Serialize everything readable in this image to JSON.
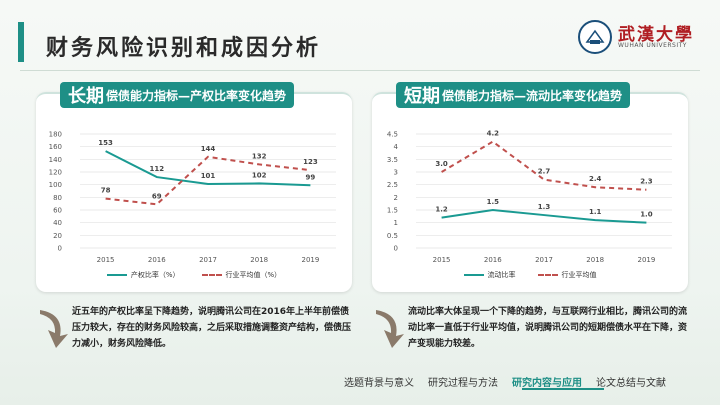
{
  "page": {
    "title": "财务风险识别和成因分析",
    "logo_text": "武漢大學",
    "logo_sub": "WUHAN UNIVERSITY"
  },
  "panels": [
    {
      "header_big": "长期",
      "header_small": "偿债能力指标—产权比率变化趋势",
      "legend": [
        "产权比率（%）",
        "行业平均值（%）"
      ],
      "description": "近五年的产权比率呈下降趋势，说明腾讯公司在2016年上半年前偿债压力较大，存在的财务风险较高，之后采取措施调整资产结构，偿债压力减小，财务风险降低。"
    },
    {
      "header_big": "短期",
      "header_small": "偿债能力指标—流动比率变化趋势",
      "legend": [
        "流动比率",
        "行业平均值"
      ],
      "description": "流动比率大体呈现一个下降的趋势，与互联网行业相比，腾讯公司的流动比率一直低于行业平均值，说明腾讯公司的短期偿债水平在下降，资产变现能力较差。"
    }
  ],
  "nav": {
    "items": [
      "选题背景与意义",
      "研究过程与方法",
      "研究内容与应用",
      "论文总结与文献"
    ],
    "active_index": 2
  },
  "colors": {
    "accent": "#1e8f86",
    "series_solid": "#1a9a92",
    "series_dashed": "#c0504d"
  },
  "chart_data": [
    {
      "type": "line",
      "title": "",
      "x": [
        "2015",
        "2016",
        "2017",
        "2018",
        "2019"
      ],
      "ylim": [
        0,
        180
      ],
      "yticks": [
        "0",
        "20",
        "40",
        "60",
        "80",
        "100",
        "120",
        "140",
        "160",
        "180"
      ],
      "series": [
        {
          "name": "产权比率（%）",
          "values": [
            153,
            112,
            101,
            102,
            99
          ],
          "labels": [
            "153",
            "112",
            "101",
            "102",
            "99"
          ],
          "style": "solid"
        },
        {
          "name": "行业平均值（%）",
          "values": [
            78,
            69,
            144,
            132,
            123
          ],
          "labels": [
            "78",
            "69",
            "144",
            "132",
            "123"
          ],
          "style": "dashed"
        }
      ],
      "grid": true,
      "legend": "bottom"
    },
    {
      "type": "line",
      "title": "",
      "x": [
        "2015",
        "2016",
        "2017",
        "2018",
        "2019"
      ],
      "ylim": [
        0,
        4.5
      ],
      "yticks": [
        "0",
        "0.5",
        "1",
        "1.5",
        "2",
        "2.5",
        "3",
        "3.5",
        "4",
        "4.5"
      ],
      "series": [
        {
          "name": "流动比率",
          "values": [
            1.2,
            1.5,
            1.3,
            1.1,
            1.0
          ],
          "labels": [
            "1.2",
            "1.5",
            "1.3",
            "1.1",
            "1.0"
          ],
          "style": "solid"
        },
        {
          "name": "行业平均值",
          "values": [
            3.0,
            4.2,
            2.7,
            2.4,
            2.3
          ],
          "labels": [
            "3.0",
            "4.2",
            "2.7",
            "2.4",
            "2.3"
          ],
          "style": "dashed"
        }
      ],
      "grid": true,
      "legend": "bottom"
    }
  ]
}
